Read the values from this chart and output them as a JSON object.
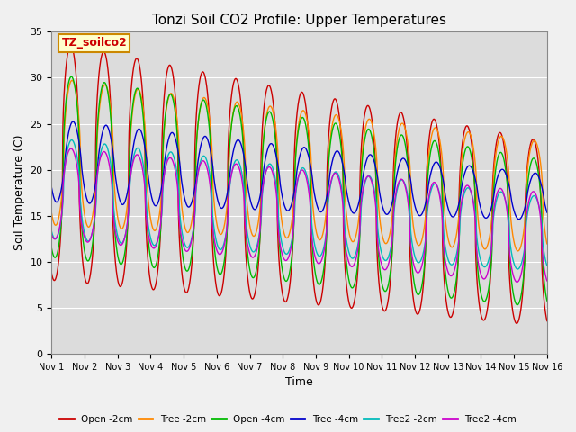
{
  "title": "Tonzi Soil CO2 Profile: Upper Temperatures",
  "xlabel": "Time",
  "ylabel": "Soil Temperature (C)",
  "ylim": [
    0,
    35
  ],
  "xlim_days": 15,
  "plot_bg_color": "#dcdcdc",
  "label_box_text": "TZ_soilco2",
  "label_box_color": "#ffffcc",
  "label_box_border": "#cc8800",
  "series": [
    {
      "name": "Open -2cm",
      "color": "#cc0000"
    },
    {
      "name": "Tree -2cm",
      "color": "#ff8800"
    },
    {
      "name": "Open -4cm",
      "color": "#00bb00"
    },
    {
      "name": "Tree -4cm",
      "color": "#0000cc"
    },
    {
      "name": "Tree2 -2cm",
      "color": "#00bbbb"
    },
    {
      "name": "Tree2 -4cm",
      "color": "#cc00cc"
    }
  ],
  "xtick_labels": [
    "Nov 1",
    "Nov 2",
    "Nov 3",
    "Nov 4",
    "Nov 5",
    "Nov 6",
    "Nov 7",
    "Nov 8",
    "Nov 9",
    "Nov 10",
    "Nov 11",
    "Nov 12",
    "Nov 13",
    "Nov 14",
    "Nov 15",
    "Nov 16"
  ],
  "ytick_values": [
    0,
    5,
    10,
    15,
    20,
    25,
    30,
    35
  ],
  "grid_color": "#ffffff",
  "num_days": 15,
  "pts_per_day": 288
}
